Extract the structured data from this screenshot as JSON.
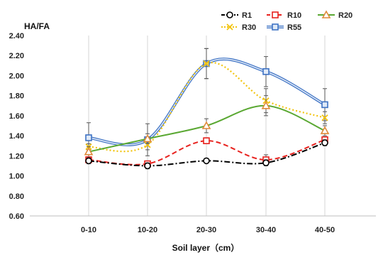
{
  "chart_data": {
    "type": "line",
    "title": "",
    "ylabel": "HA/FA",
    "xlabel": "Soil layer（cm）",
    "categories": [
      "0-10",
      "10-20",
      "20-30",
      "30-40",
      "40-50"
    ],
    "ylim": [
      0.6,
      2.4
    ],
    "yticks": [
      "0.60",
      "0.80",
      "1.00",
      "1.20",
      "1.40",
      "1.60",
      "1.80",
      "2.00",
      "2.20",
      "2.40"
    ],
    "grid": "vertical",
    "legend_position": "top-right",
    "series": [
      {
        "name": "R1",
        "color": "#000000",
        "marker": "circle",
        "line_style": "dash-dot",
        "values": [
          1.15,
          1.1,
          1.15,
          1.13,
          1.33
        ],
        "errors": [
          0.03,
          0.03,
          0.0,
          0.03,
          0.03
        ]
      },
      {
        "name": "R10",
        "color": "#e8231f",
        "marker": "square",
        "line_style": "dashed",
        "values": [
          1.16,
          1.12,
          1.35,
          1.16,
          1.36
        ],
        "errors": [
          0.03,
          0.03,
          0.03,
          0.05,
          0.03
        ]
      },
      {
        "name": "R20",
        "color": "#5aa832",
        "marker": "triangle",
        "marker_color": "#e08a3a",
        "line_style": "solid",
        "values": [
          1.24,
          1.37,
          1.5,
          1.7,
          1.45
        ],
        "errors": [
          0.05,
          0.05,
          0.07,
          0.1,
          0.05
        ]
      },
      {
        "name": "R30",
        "color": "#f2c40f",
        "marker": "x",
        "line_style": "dotted",
        "values": [
          1.29,
          1.31,
          2.12,
          1.75,
          1.58
        ],
        "errors": [
          0.03,
          0.05,
          0.15,
          0.12,
          0.06
        ]
      },
      {
        "name": "R55",
        "color": "#3f73c4",
        "marker": "square",
        "line_style": "double",
        "values": [
          1.38,
          1.36,
          2.12,
          2.04,
          1.71
        ],
        "errors": [
          0.15,
          0.16,
          0.15,
          0.15,
          0.16
        ]
      }
    ]
  }
}
